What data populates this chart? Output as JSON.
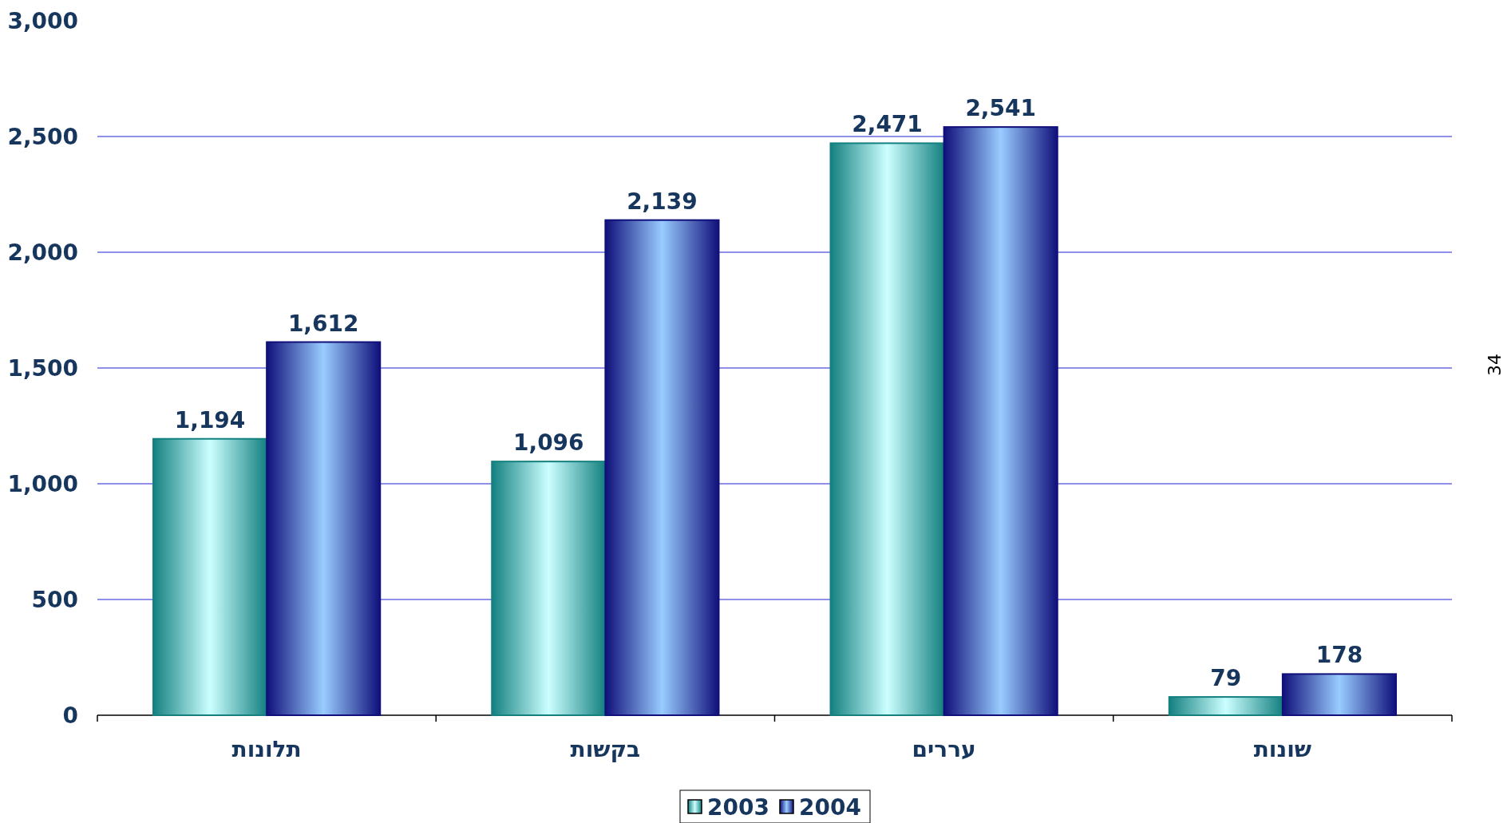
{
  "chart_data": {
    "type": "bar",
    "categories": [
      "תלונות",
      "בקשות",
      "עררים",
      "שונות"
    ],
    "series": [
      {
        "name": "2003",
        "color": "#148080",
        "values": [
          1194,
          1096,
          2471,
          79
        ],
        "value_labels": [
          "1,194",
          "1,096",
          "2,471",
          "79"
        ]
      },
      {
        "name": "2004",
        "color": "#10107a",
        "values": [
          1612,
          2139,
          2541,
          178
        ],
        "value_labels": [
          "1,612",
          "2,139",
          "2,541",
          "178"
        ]
      }
    ],
    "ylim": [
      0,
      3000
    ],
    "yticks": [
      {
        "value": 0,
        "label": "0"
      },
      {
        "value": 500,
        "label": "500"
      },
      {
        "value": 1000,
        "label": "1,000"
      },
      {
        "value": 1500,
        "label": "1,500"
      },
      {
        "value": 2000,
        "label": "2,000"
      },
      {
        "value": 2500,
        "label": "2,500"
      },
      {
        "value": 3000,
        "label": "3,000"
      }
    ],
    "grid": "y",
    "legend": "bottom",
    "annotations": [
      "34"
    ]
  }
}
